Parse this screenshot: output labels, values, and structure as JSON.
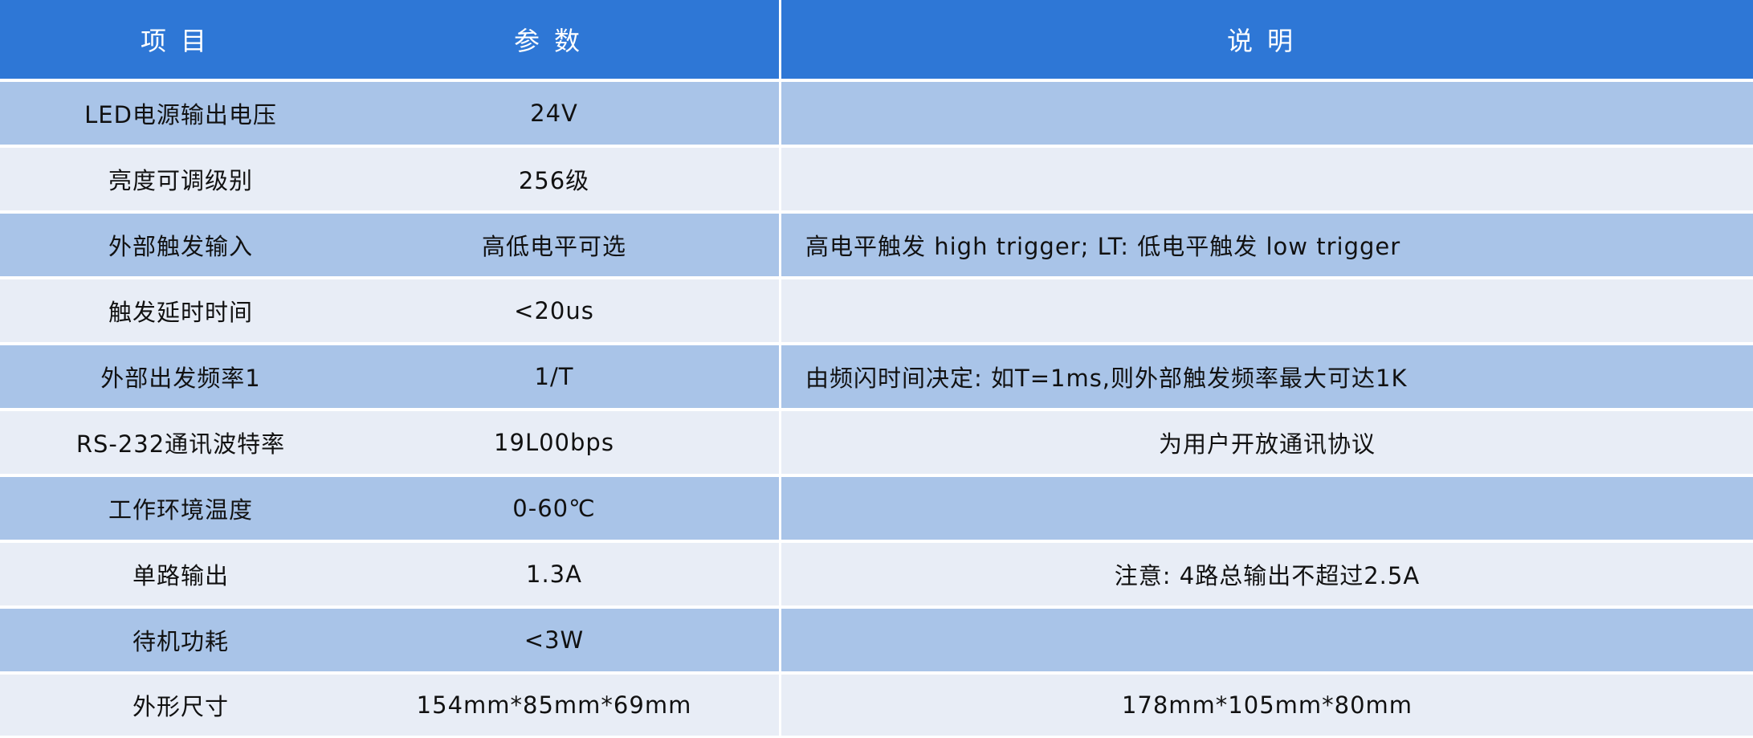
{
  "header": {
    "item": "项目",
    "param": "参数",
    "desc": "说明"
  },
  "colors": {
    "header": "#2E77D6",
    "row_dark": "#A9C4E8",
    "row_light": "#E8EDF6"
  },
  "rows": [
    {
      "item": "LED电源输出电压",
      "param": "24V",
      "desc": ""
    },
    {
      "item": "亮度可调级别",
      "param": "256级",
      "desc": ""
    },
    {
      "item": "外部触发输入",
      "param": "高低电平可选",
      "desc": "高电平触发 high trigger; LT: 低电平触发 low trigger"
    },
    {
      "item": "触发延时时间",
      "param": "<20us",
      "desc": ""
    },
    {
      "item": "外部出发频率1",
      "param": "1/T",
      "desc": "由频闪时间决定: 如T=1ms,则外部触发频率最大可达1K"
    },
    {
      "item": "RS-232通讯波特率",
      "param": "19L00bps",
      "desc": "为用户开放通讯协议"
    },
    {
      "item": "工作环境温度",
      "param": "0-60℃",
      "desc": ""
    },
    {
      "item": "单路输出",
      "param": "1.3A",
      "desc": "注意: 4路总输出不超过2.5A"
    },
    {
      "item": "待机功耗",
      "param": "<3W",
      "desc": ""
    },
    {
      "item": "外形尺寸",
      "param": "154mm*85mm*69mm",
      "desc": "178mm*105mm*80mm"
    }
  ]
}
